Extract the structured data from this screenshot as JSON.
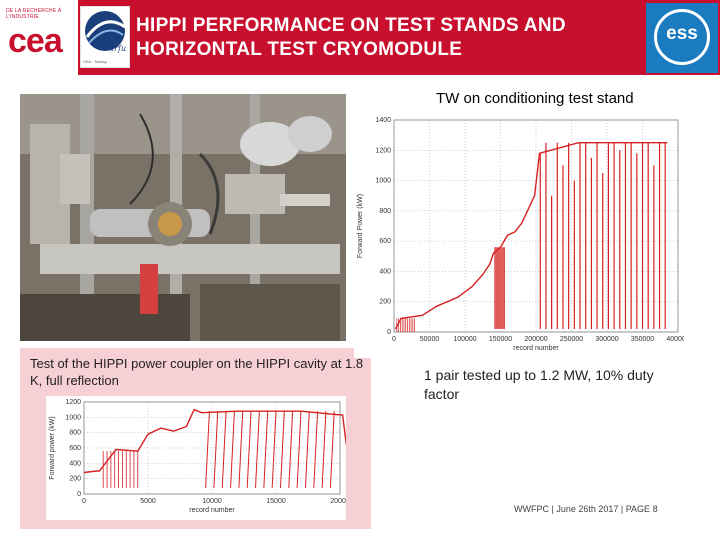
{
  "header": {
    "title_line1": "HIPPI PERFORMANCE ON TEST STANDS AND",
    "title_line2": "HORIZONTAL TEST CRYOMODULE",
    "colors": {
      "header_bg": "#c8102e",
      "ess_blue": "#1a7bc1"
    }
  },
  "logos": {
    "cea_small": "DE LA RECHERCHE À L'INDUSTRIE",
    "cea_word": "cea",
    "irfu_bottom": "CEA · Saclay",
    "ess_word": "ess"
  },
  "captions": {
    "hippi_caption": "Test of the HIPPI power coupler on the HIPPI cavity at 1.8 K, full reflection",
    "tw_title": "TW on conditioning test stand",
    "tw_result": "1 pair tested up to 1.2 MW, 10% duty factor"
  },
  "footer": {
    "text": "WWFPC | June 26th 2017 |  PAGE 8"
  },
  "chart_data": [
    {
      "type": "line",
      "name": "hippi-cavity-chart",
      "xlabel": "record number",
      "ylabel": "Forward power (kW)",
      "xlim": [
        0,
        20000
      ],
      "ylim": [
        0,
        1200
      ],
      "x_ticks": [
        "0",
        "5000",
        "10000",
        "15000",
        "20000"
      ],
      "y_ticks": [
        "0",
        "200",
        "400",
        "600",
        "800",
        "1000",
        "1200"
      ],
      "grid": true,
      "color": "#d62020",
      "series": [
        {
          "points": [
            [
              0,
              280
            ],
            [
              1000,
              300
            ],
            [
              1200,
              300
            ],
            [
              2500,
              580
            ],
            [
              4200,
              560
            ],
            [
              5000,
              780
            ],
            [
              6000,
              860
            ],
            [
              7000,
              820
            ],
            [
              8000,
              880
            ],
            [
              8600,
              1100
            ],
            [
              9200,
              1060
            ],
            [
              12000,
              1080
            ],
            [
              17000,
              1080
            ],
            [
              19500,
              1040
            ],
            [
              20200,
              1030
            ],
            [
              20500,
              640
            ],
            [
              21000,
              590
            ]
          ]
        }
      ]
    },
    {
      "type": "line",
      "name": "tw-conditioning-chart",
      "title": "",
      "xlabel": "record number",
      "ylabel": "Forward Power (kW)",
      "xlim": [
        0,
        400000
      ],
      "ylim": [
        0,
        1400
      ],
      "x_ticks": [
        "0",
        "50000",
        "100000",
        "150000",
        "200000",
        "250000",
        "300000",
        "350000",
        "400000"
      ],
      "y_ticks": [
        "0",
        "200",
        "400",
        "600",
        "800",
        "1000",
        "1200",
        "1400"
      ],
      "grid": true,
      "color": "#d62020",
      "legend": "",
      "series": [
        {
          "points": [
            [
              2000,
              20
            ],
            [
              10000,
              90
            ],
            [
              40000,
              110
            ],
            [
              60000,
              170
            ],
            [
              90000,
              230
            ],
            [
              110000,
              300
            ],
            [
              125000,
              380
            ],
            [
              135000,
              450
            ],
            [
              140000,
              520
            ],
            [
              150000,
              560
            ],
            [
              160000,
              640
            ],
            [
              170000,
              660
            ],
            [
              180000,
              720
            ],
            [
              190000,
              820
            ],
            [
              198000,
              900
            ],
            [
              205000,
              1180
            ],
            [
              260000,
              1250
            ],
            [
              340000,
              1250
            ],
            [
              385000,
              1250
            ]
          ]
        }
      ]
    }
  ]
}
